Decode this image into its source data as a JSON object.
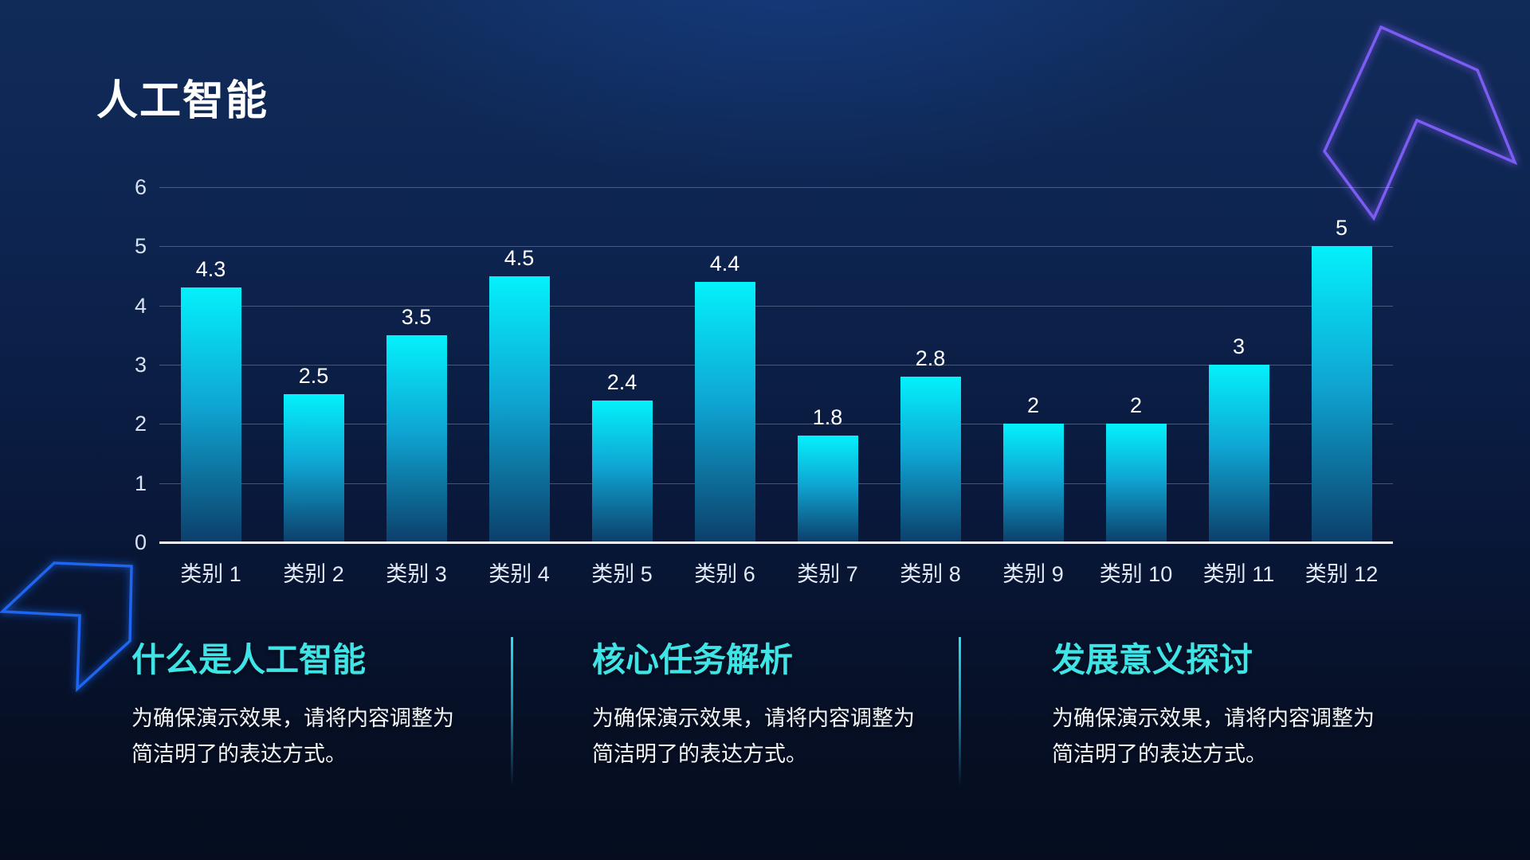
{
  "slide": {
    "title": "人工智能"
  },
  "chart_data": {
    "type": "bar",
    "title": "",
    "categories": [
      "类别 1",
      "类别 2",
      "类别 3",
      "类别 4",
      "类别 5",
      "类别 6",
      "类别 7",
      "类别 8",
      "类别 9",
      "类别 10",
      "类别 11",
      "类别 12"
    ],
    "values": [
      4.3,
      2.5,
      3.5,
      4.5,
      2.4,
      4.4,
      1.8,
      2.8,
      2,
      2,
      3,
      5
    ],
    "xlabel": "",
    "ylabel": "",
    "ylim": [
      0,
      6
    ],
    "yticks": [
      0,
      1,
      2,
      3,
      4,
      5,
      6
    ],
    "grid": true,
    "legend": "none",
    "bar_gradient_top": "#04f1fb",
    "bar_gradient_bottom": "#0c3f6a",
    "value_label_color": "#ffffff",
    "axis_label_color": "#d9e2f3"
  },
  "sections": [
    {
      "heading": "什么是人工智能",
      "body": "为确保演示效果，请将内容调整为简洁明了的表达方式。"
    },
    {
      "heading": "核心任务解析",
      "body": "为确保演示效果，请将内容调整为简洁明了的表达方式。"
    },
    {
      "heading": "发展意义探讨",
      "body": "为确保演示效果，请将内容调整为简洁明了的表达方式。"
    }
  ],
  "colors": {
    "background_top": "#112b59",
    "background_bottom": "#050d1f",
    "heading_accent": "#3ee4e6",
    "bar_top": "#04f1fb",
    "bar_bottom": "#0c3f6a",
    "baseline": "#f2f6fb",
    "deco_arrow_purple": "#7b5cf2",
    "deco_arrow_blue": "#1b66f2"
  }
}
